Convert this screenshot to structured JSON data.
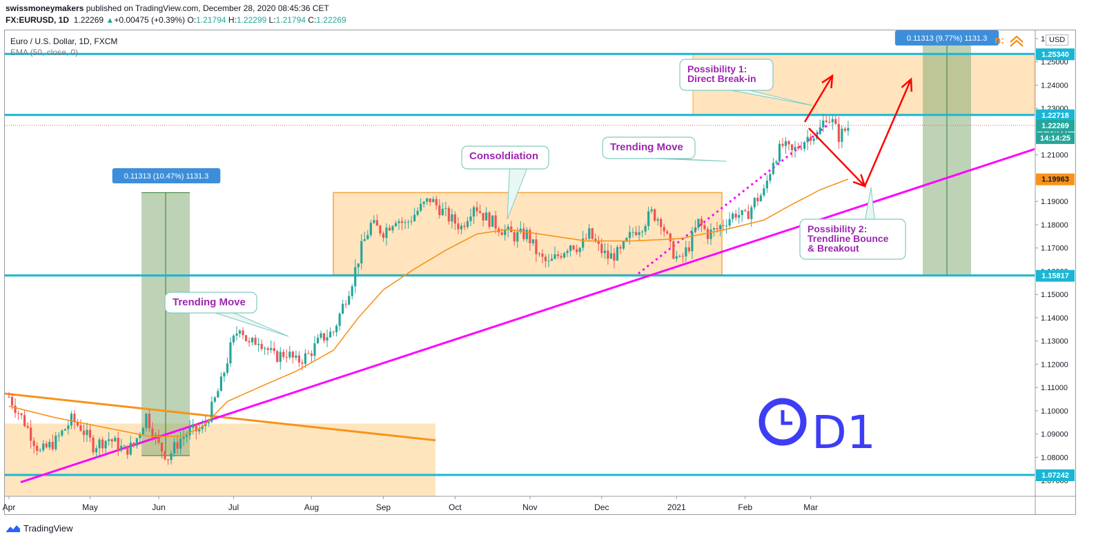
{
  "header": {
    "author": "swissmoneymakers",
    "published": "published on TradingView.com, December 28, 2020 08:45:36 CET",
    "symbol_line": "FX:EURUSD, 1D",
    "last": "1.22269",
    "change": "+0.00475 (+0.39%)",
    "o_label": "O:",
    "o": "1.21794",
    "h_label": "H:",
    "h": "1.22299",
    "l_label": "L:",
    "l": "1.21794",
    "c_label": "C:",
    "c": "1.22269"
  },
  "legend": {
    "title": "Euro / U.S. Dollar, 1D, FXCM",
    "indicator": "EMA (50, close, 0)"
  },
  "currency": "USD",
  "footer": {
    "brand": "TradingView"
  },
  "colors": {
    "up": "#26a69a",
    "down": "#ef5350",
    "ema": "#f7931a",
    "level": "#1ab6d4",
    "trend": "#ff00ff",
    "zone": "#ffe0b2",
    "measure": "#88ad7a",
    "arrow": "#ff0000",
    "note": "#9c27b0"
  },
  "chart_data": {
    "type": "candlestick",
    "title": "Euro / U.S. Dollar, 1D, FXCM",
    "ylim": [
      1.064,
      1.262
    ],
    "y_ticks": [
      "1.26000",
      "1.25000",
      "1.24000",
      "1.23000",
      "1.22000",
      "1.21000",
      "1.20000",
      "1.19000",
      "1.18000",
      "1.17000",
      "1.16000",
      "1.15000",
      "1.14000",
      "1.13000",
      "1.12000",
      "1.11000",
      "1.10000",
      "1.09000",
      "1.08000",
      "1.07000"
    ],
    "x_ticks": [
      "Apr",
      "May",
      "Jun",
      "Jul",
      "Aug",
      "Sep",
      "Oct",
      "Nov",
      "Dec",
      "2021",
      "Feb",
      "Mar"
    ],
    "price_labels": [
      {
        "value": 1.2534,
        "text": "1.25340",
        "kind": "level"
      },
      {
        "value": 1.22718,
        "text": "1.22718",
        "kind": "level"
      },
      {
        "value": 1.22269,
        "text": "1.22269",
        "kind": "last"
      },
      {
        "value": 1.219,
        "text": "14:14:25",
        "kind": "timer"
      },
      {
        "value": 1.19963,
        "text": "1.19963",
        "kind": "ema"
      },
      {
        "value": 1.15817,
        "text": "1.15817",
        "kind": "level"
      },
      {
        "value": 1.07242,
        "text": "1.07242",
        "kind": "level"
      }
    ],
    "horizontal_levels": [
      1.2534,
      1.22718,
      1.15817,
      1.07242
    ],
    "measurements": [
      {
        "text": "0.11313 (10.47%) 1131.3"
      },
      {
        "text": "0.11313 (9.77%) 1131.3"
      }
    ],
    "annotations": [
      {
        "text": "Trending Move"
      },
      {
        "text": "Consoldiation"
      },
      {
        "text": "Trending Move"
      },
      {
        "text": "Possibility 1:",
        "text2": "Direct Break-in"
      },
      {
        "text": "Possibility 2:",
        "text2": "Trendline Bounce",
        "text3": "& Breakout"
      }
    ],
    "timeframe_mark": "D1",
    "close_anchors": [
      [
        0,
        1.106
      ],
      [
        5,
        1.095
      ],
      [
        10,
        1.082
      ],
      [
        15,
        1.087
      ],
      [
        20,
        1.096
      ],
      [
        23,
        1.093
      ],
      [
        27,
        1.085
      ],
      [
        32,
        1.088
      ],
      [
        37,
        1.083
      ],
      [
        40,
        1.085
      ],
      [
        44,
        1.098
      ],
      [
        48,
        1.085
      ],
      [
        51,
        1.08
      ],
      [
        55,
        1.088
      ],
      [
        58,
        1.091
      ],
      [
        62,
        1.092
      ],
      [
        65,
        1.101
      ],
      [
        68,
        1.112
      ],
      [
        71,
        1.127
      ],
      [
        74,
        1.137
      ],
      [
        77,
        1.128
      ],
      [
        80,
        1.131
      ],
      [
        85,
        1.123
      ],
      [
        89,
        1.125
      ],
      [
        92,
        1.121
      ],
      [
        96,
        1.124
      ],
      [
        100,
        1.131
      ],
      [
        104,
        1.134
      ],
      [
        107,
        1.145
      ],
      [
        110,
        1.156
      ],
      [
        113,
        1.17
      ],
      [
        116,
        1.18
      ],
      [
        120,
        1.177
      ],
      [
        124,
        1.183
      ],
      [
        127,
        1.18
      ],
      [
        131,
        1.186
      ],
      [
        135,
        1.191
      ],
      [
        138,
        1.187
      ],
      [
        141,
        1.183
      ],
      [
        145,
        1.179
      ],
      [
        149,
        1.189
      ],
      [
        152,
        1.184
      ],
      [
        155,
        1.181
      ],
      [
        158,
        1.178
      ],
      [
        162,
        1.175
      ],
      [
        166,
        1.176
      ],
      [
        170,
        1.166
      ],
      [
        173,
        1.163
      ],
      [
        177,
        1.168
      ],
      [
        180,
        1.172
      ],
      [
        183,
        1.17
      ],
      [
        186,
        1.176
      ],
      [
        189,
        1.17
      ],
      [
        192,
        1.166
      ],
      [
        196,
        1.168
      ],
      [
        200,
        1.177
      ],
      [
        203,
        1.18
      ],
      [
        206,
        1.185
      ],
      [
        209,
        1.182
      ],
      [
        212,
        1.17
      ],
      [
        215,
        1.164
      ],
      [
        218,
        1.171
      ],
      [
        221,
        1.181
      ],
      [
        224,
        1.176
      ],
      [
        227,
        1.178
      ],
      [
        230,
        1.182
      ],
      [
        233,
        1.185
      ],
      [
        236,
        1.183
      ],
      [
        239,
        1.19
      ],
      [
        242,
        1.194
      ],
      [
        245,
        1.208
      ],
      [
        248,
        1.214
      ],
      [
        251,
        1.211
      ],
      [
        254,
        1.215
      ],
      [
        257,
        1.219
      ],
      [
        259,
        1.218
      ],
      [
        262,
        1.227
      ],
      [
        264,
        1.224
      ],
      [
        266,
        1.218
      ],
      [
        269,
        1.222
      ]
    ],
    "ema_anchors": [
      [
        0,
        1.102
      ],
      [
        15,
        1.097
      ],
      [
        30,
        1.093
      ],
      [
        45,
        1.089
      ],
      [
        55,
        1.089
      ],
      [
        62,
        1.093
      ],
      [
        70,
        1.104
      ],
      [
        80,
        1.11
      ],
      [
        92,
        1.117
      ],
      [
        104,
        1.126
      ],
      [
        112,
        1.14
      ],
      [
        120,
        1.152
      ],
      [
        130,
        1.161
      ],
      [
        140,
        1.169
      ],
      [
        150,
        1.176
      ],
      [
        160,
        1.178
      ],
      [
        170,
        1.176
      ],
      [
        185,
        1.173
      ],
      [
        200,
        1.173
      ],
      [
        215,
        1.174
      ],
      [
        230,
        1.178
      ],
      [
        242,
        1.182
      ],
      [
        250,
        1.188
      ],
      [
        260,
        1.195
      ],
      [
        269,
        1.1996
      ]
    ],
    "x_labels_days": {
      "Apr": 0,
      "May": 26,
      "Jun": 48,
      "Jul": 72,
      "Aug": 97,
      "Sep": 120,
      "Oct": 143,
      "Nov": 167,
      "Dec": 190,
      "2021": 214,
      "Feb": 236,
      "Mar": 257
    }
  }
}
